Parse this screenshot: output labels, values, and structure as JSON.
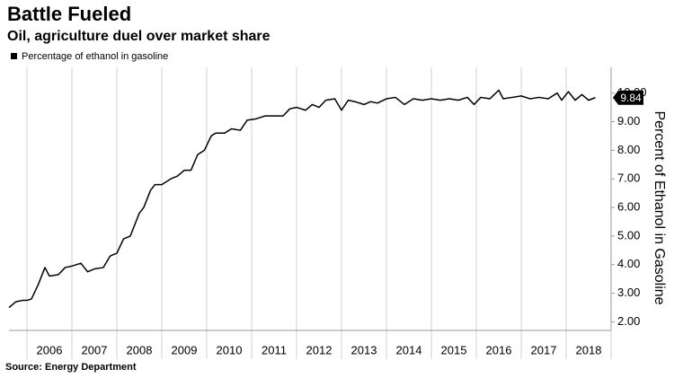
{
  "chart_data": {
    "type": "line",
    "title": "Battle Fueled",
    "subtitle": "Oil, agriculture duel over market share",
    "y_label": "Percent of Ethanol in Gasoline",
    "source": "Source: Energy Department",
    "x": [
      2005.6,
      2005.75,
      2005.9,
      2006.0,
      2006.1,
      2006.25,
      2006.4,
      2006.5,
      2006.7,
      2006.85,
      2007.0,
      2007.2,
      2007.35,
      2007.5,
      2007.7,
      2007.85,
      2008.0,
      2008.15,
      2008.3,
      2008.5,
      2008.6,
      2008.75,
      2008.85,
      2009.0,
      2009.2,
      2009.35,
      2009.5,
      2009.65,
      2009.8,
      2009.95,
      2010.1,
      2010.2,
      2010.4,
      2010.55,
      2010.75,
      2010.9,
      2011.1,
      2011.3,
      2011.5,
      2011.7,
      2011.85,
      2012.0,
      2012.2,
      2012.35,
      2012.5,
      2012.65,
      2012.85,
      2013.0,
      2013.15,
      2013.3,
      2013.5,
      2013.65,
      2013.8,
      2014.0,
      2014.2,
      2014.4,
      2014.6,
      2014.8,
      2015.0,
      2015.2,
      2015.4,
      2015.6,
      2015.8,
      2015.95,
      2016.1,
      2016.3,
      2016.5,
      2016.6,
      2016.8,
      2017.0,
      2017.2,
      2017.4,
      2017.6,
      2017.8,
      2017.9,
      2018.05,
      2018.2,
      2018.35,
      2018.5,
      2018.65
    ],
    "series": [
      {
        "name": "Percentage of ethanol in gasoline",
        "color": "#000000",
        "values": [
          2.5,
          2.7,
          2.75,
          2.75,
          2.8,
          3.3,
          3.9,
          3.6,
          3.65,
          3.9,
          3.95,
          4.05,
          3.75,
          3.85,
          3.9,
          4.3,
          4.4,
          4.9,
          5.0,
          5.8,
          6.0,
          6.6,
          6.8,
          6.8,
          7.0,
          7.1,
          7.3,
          7.3,
          7.85,
          8.0,
          8.5,
          8.6,
          8.6,
          8.75,
          8.7,
          9.05,
          9.1,
          9.2,
          9.2,
          9.2,
          9.45,
          9.5,
          9.4,
          9.6,
          9.5,
          9.75,
          9.8,
          9.4,
          9.75,
          9.7,
          9.6,
          9.7,
          9.65,
          9.8,
          9.85,
          9.6,
          9.8,
          9.75,
          9.8,
          9.75,
          9.8,
          9.75,
          9.85,
          9.6,
          9.85,
          9.8,
          10.1,
          9.8,
          9.85,
          9.9,
          9.8,
          9.85,
          9.8,
          10.0,
          9.75,
          10.05,
          9.75,
          9.95,
          9.75,
          9.84
        ]
      }
    ],
    "xlim": [
      2005.6,
      2019.0
    ],
    "xticks": [
      {
        "value": 2006.5,
        "label": "2006"
      },
      {
        "value": 2007.5,
        "label": "2007"
      },
      {
        "value": 2008.5,
        "label": "2008"
      },
      {
        "value": 2009.5,
        "label": "2009"
      },
      {
        "value": 2010.5,
        "label": "2010"
      },
      {
        "value": 2011.5,
        "label": "2011"
      },
      {
        "value": 2012.5,
        "label": "2012"
      },
      {
        "value": 2013.5,
        "label": "2013"
      },
      {
        "value": 2014.5,
        "label": "2014"
      },
      {
        "value": 2015.5,
        "label": "2015"
      },
      {
        "value": 2016.5,
        "label": "2016"
      },
      {
        "value": 2017.5,
        "label": "2017"
      },
      {
        "value": 2018.5,
        "label": "2018"
      }
    ],
    "ylim": [
      1.7,
      10.9
    ],
    "yticks": [
      {
        "value": 2,
        "label": "2.00"
      },
      {
        "value": 3,
        "label": "3.00"
      },
      {
        "value": 4,
        "label": "4.00"
      },
      {
        "value": 5,
        "label": "5.00"
      },
      {
        "value": 6,
        "label": "6.00"
      },
      {
        "value": 7,
        "label": "7.00"
      },
      {
        "value": 8,
        "label": "8.00"
      },
      {
        "value": 9,
        "label": "9.00"
      },
      {
        "value": 10,
        "label": "10.00"
      }
    ],
    "grid": true
  }
}
